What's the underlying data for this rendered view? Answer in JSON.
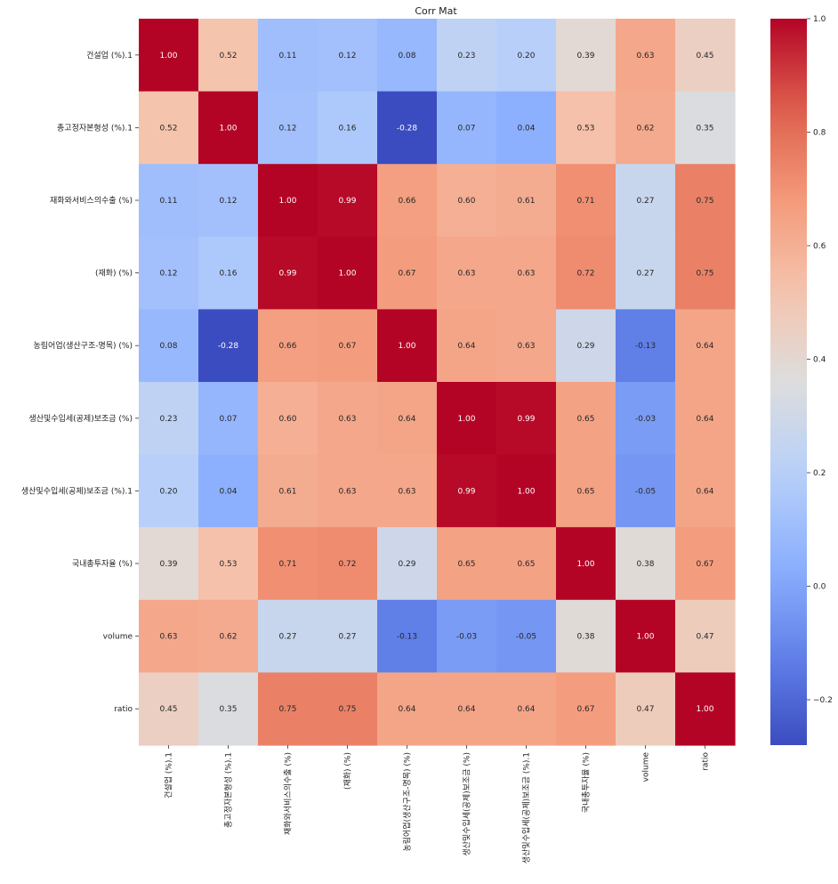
{
  "chart_data": {
    "type": "heatmap",
    "title": "Corr Mat",
    "colormap": "coolwarm",
    "vmin": -0.28,
    "vmax": 1.0,
    "labels": [
      "건설업 (%).1",
      "총고정자본형성 (%).1",
      "재화와서비스의수출 (%)",
      "(재화) (%)",
      "농림어업(생산구조-명목) (%)",
      "생산및수입세(공제)보조금 (%)",
      "생산및수입세(공제)보조금 (%).1",
      "국내총투자율 (%)",
      "volume",
      "ratio"
    ],
    "matrix": [
      [
        1.0,
        0.52,
        0.11,
        0.12,
        0.08,
        0.23,
        0.2,
        0.39,
        0.63,
        0.45
      ],
      [
        0.52,
        1.0,
        0.12,
        0.16,
        -0.28,
        0.07,
        0.04,
        0.53,
        0.62,
        0.35
      ],
      [
        0.11,
        0.12,
        1.0,
        0.99,
        0.66,
        0.6,
        0.61,
        0.71,
        0.27,
        0.75
      ],
      [
        0.12,
        0.16,
        0.99,
        1.0,
        0.67,
        0.63,
        0.63,
        0.72,
        0.27,
        0.75
      ],
      [
        0.08,
        -0.28,
        0.66,
        0.67,
        1.0,
        0.64,
        0.63,
        0.29,
        -0.13,
        0.64
      ],
      [
        0.23,
        0.07,
        0.6,
        0.63,
        0.64,
        1.0,
        0.99,
        0.65,
        -0.03,
        0.64
      ],
      [
        0.2,
        0.04,
        0.61,
        0.63,
        0.63,
        0.99,
        1.0,
        0.65,
        -0.05,
        0.64
      ],
      [
        0.39,
        0.53,
        0.71,
        0.72,
        0.29,
        0.65,
        0.65,
        1.0,
        0.38,
        0.67
      ],
      [
        0.63,
        0.62,
        0.27,
        0.27,
        -0.13,
        -0.03,
        -0.05,
        0.38,
        1.0,
        0.47
      ],
      [
        0.45,
        0.35,
        0.75,
        0.75,
        0.64,
        0.64,
        0.64,
        0.67,
        0.47,
        1.0
      ]
    ],
    "colorbar_ticks": [
      "1.0",
      "0.8",
      "0.6",
      "0.4",
      "0.2",
      "0.0",
      "−0.2"
    ],
    "colorbar_tick_values": [
      1.0,
      0.8,
      0.6,
      0.4,
      0.2,
      0.0,
      -0.2
    ],
    "annotations": true
  }
}
